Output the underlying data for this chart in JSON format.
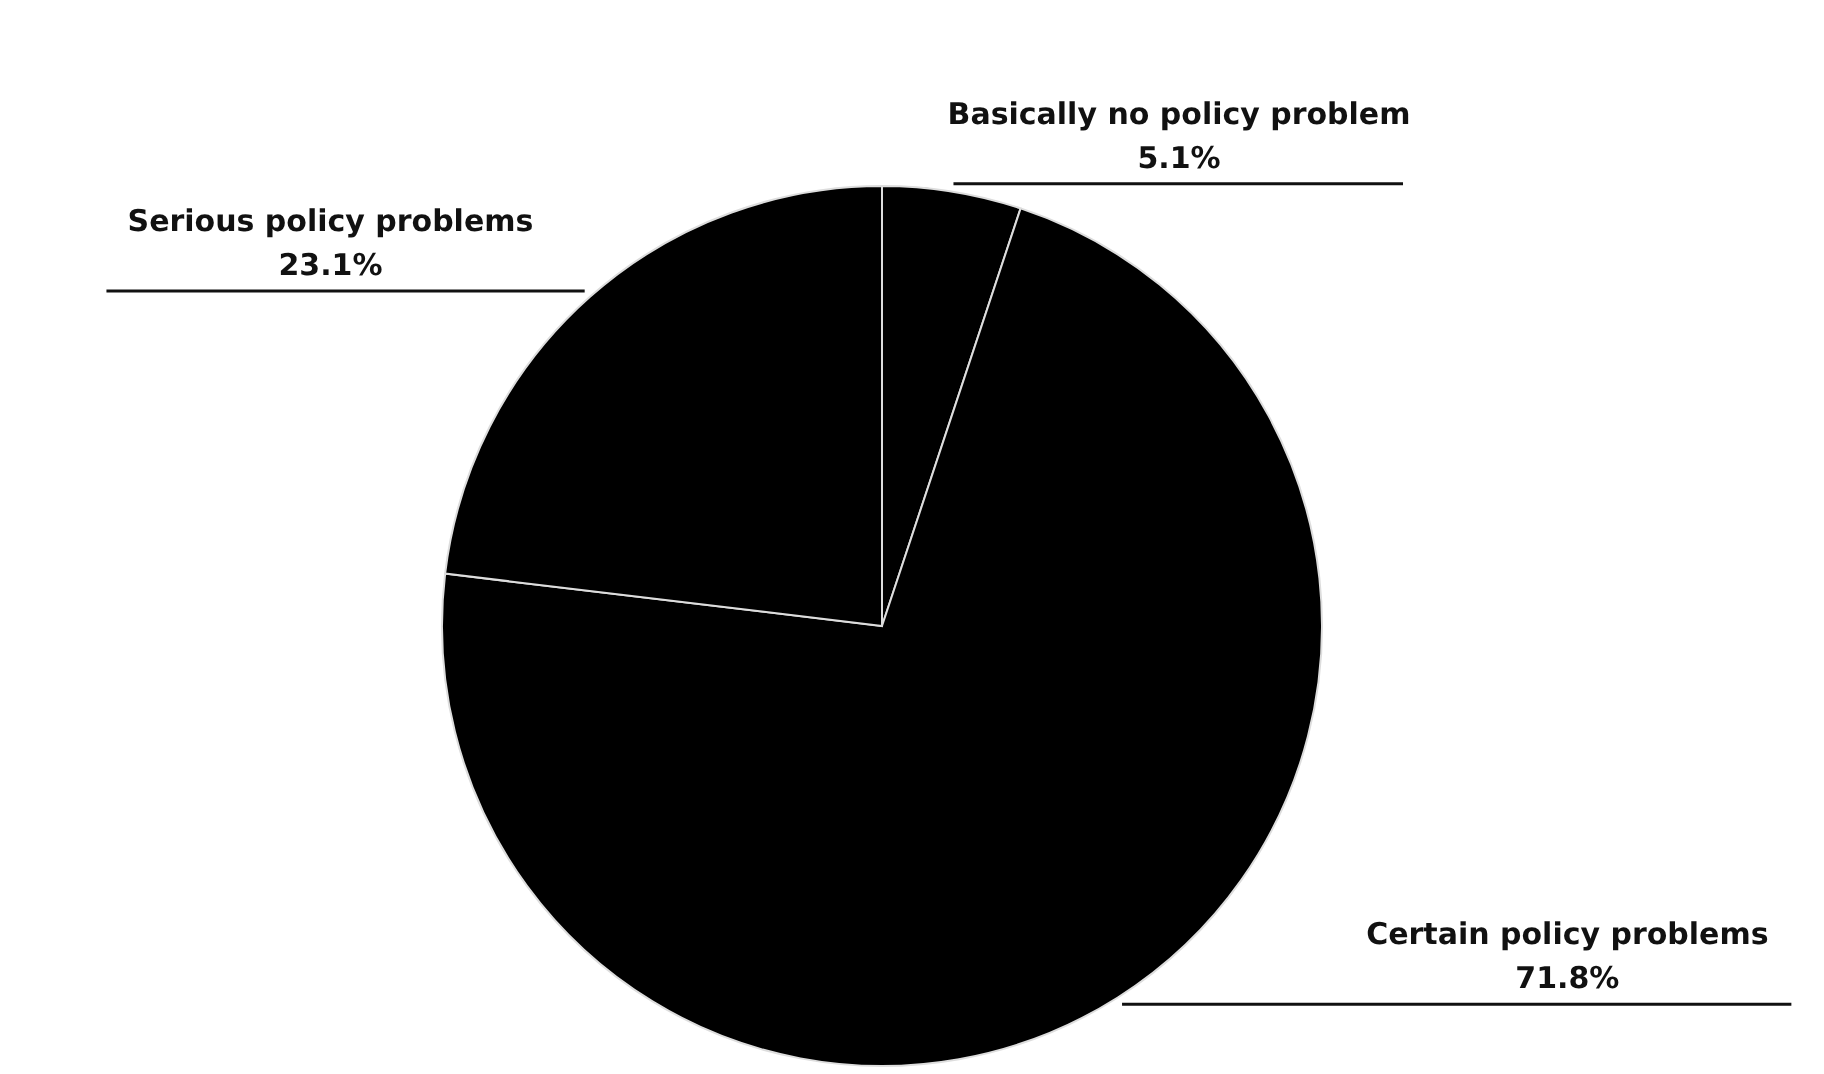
{
  "chart_data": {
    "type": "pie",
    "categories": [
      "Basically no policy problem",
      "Certain policy problems",
      "Serious policy problems"
    ],
    "values": [
      5.1,
      71.8,
      23.1
    ],
    "colors": [
      "#000000",
      "#000000",
      "#000000"
    ],
    "value_labels": [
      "5.1%",
      "71.8%",
      "23.1%"
    ]
  }
}
